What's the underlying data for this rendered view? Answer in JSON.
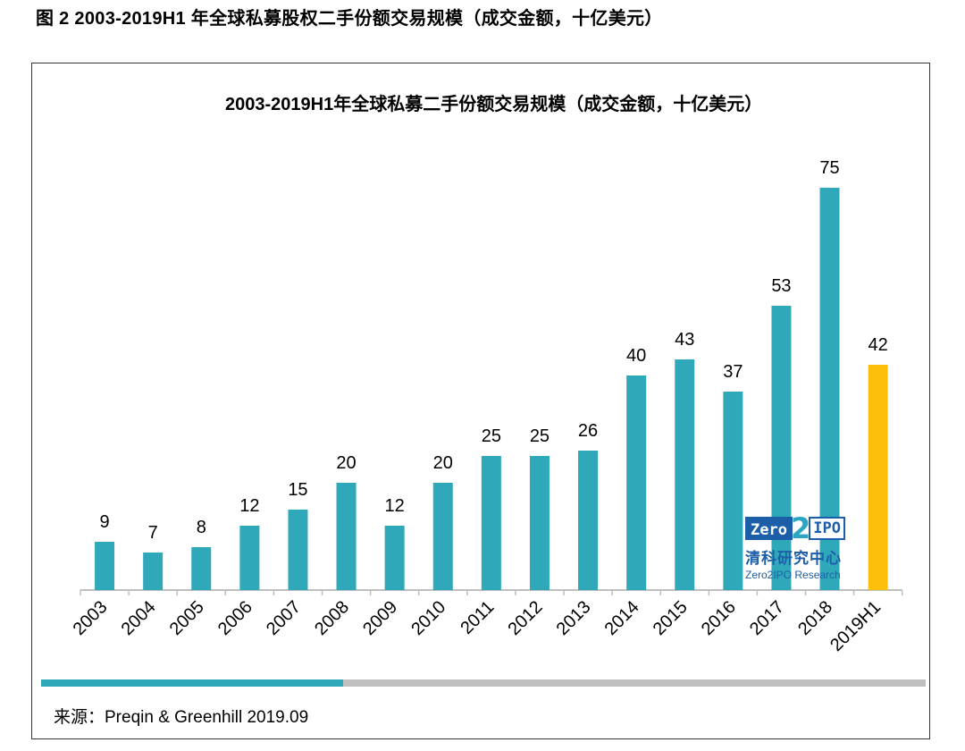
{
  "figure_title": "图 2 2003-2019H1 年全球私募股权二手份额交易规模（成交金额，十亿美元）",
  "logo": {
    "mark_left": "Zero",
    "mark_mid": "2",
    "mark_right": "IPO",
    "cn": "清科研究中心",
    "en": "Zero2IPO Research"
  },
  "source": "来源：Preqin & Greenhill 2019.09",
  "colors": {
    "bar": "#2fa9b9",
    "highlight": "#fcbf0a",
    "axis": "#bfbfbf"
  },
  "chart_data": {
    "type": "bar",
    "title": "2003-2019H1年全球私募二手份额交易规模（成交金额，十亿美元）",
    "xlabel": "",
    "ylabel": "",
    "categories": [
      "2003",
      "2004",
      "2005",
      "2006",
      "2007",
      "2008",
      "2009",
      "2010",
      "2011",
      "2012",
      "2013",
      "2014",
      "2015",
      "2016",
      "2017",
      "2018",
      "2019H1"
    ],
    "values": [
      9,
      7,
      8,
      12,
      15,
      20,
      12,
      20,
      25,
      25,
      26,
      40,
      43,
      37,
      53,
      75,
      42
    ],
    "highlight_index": 16,
    "ylim": [
      0,
      75
    ],
    "grid": false,
    "legend": "none",
    "data_labels": true
  }
}
